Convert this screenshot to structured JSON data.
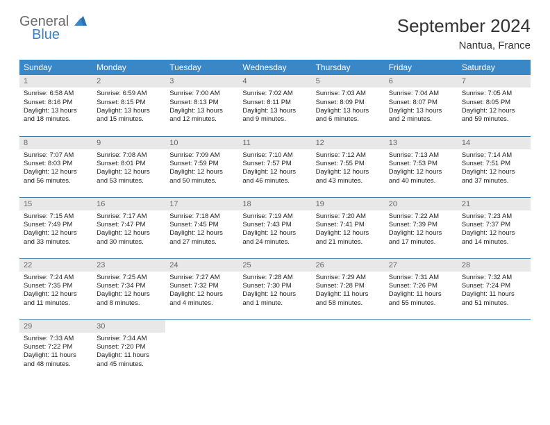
{
  "brand": {
    "part1": "General",
    "part2": "Blue"
  },
  "title": "September 2024",
  "location": "Nantua, France",
  "colors": {
    "header_bg": "#3a87c7",
    "header_text": "#ffffff",
    "daynum_bg": "#e8e8e8",
    "daynum_text": "#666666",
    "row_divider": "#3a7fb0",
    "body_text": "#222222",
    "brand_gray": "#6a6a6a",
    "brand_blue": "#3a7fc4"
  },
  "weekdays": [
    "Sunday",
    "Monday",
    "Tuesday",
    "Wednesday",
    "Thursday",
    "Friday",
    "Saturday"
  ],
  "grid": [
    [
      {
        "n": "1",
        "sr": "Sunrise: 6:58 AM",
        "ss": "Sunset: 8:16 PM",
        "dl": "Daylight: 13 hours and 18 minutes."
      },
      {
        "n": "2",
        "sr": "Sunrise: 6:59 AM",
        "ss": "Sunset: 8:15 PM",
        "dl": "Daylight: 13 hours and 15 minutes."
      },
      {
        "n": "3",
        "sr": "Sunrise: 7:00 AM",
        "ss": "Sunset: 8:13 PM",
        "dl": "Daylight: 13 hours and 12 minutes."
      },
      {
        "n": "4",
        "sr": "Sunrise: 7:02 AM",
        "ss": "Sunset: 8:11 PM",
        "dl": "Daylight: 13 hours and 9 minutes."
      },
      {
        "n": "5",
        "sr": "Sunrise: 7:03 AM",
        "ss": "Sunset: 8:09 PM",
        "dl": "Daylight: 13 hours and 6 minutes."
      },
      {
        "n": "6",
        "sr": "Sunrise: 7:04 AM",
        "ss": "Sunset: 8:07 PM",
        "dl": "Daylight: 13 hours and 2 minutes."
      },
      {
        "n": "7",
        "sr": "Sunrise: 7:05 AM",
        "ss": "Sunset: 8:05 PM",
        "dl": "Daylight: 12 hours and 59 minutes."
      }
    ],
    [
      {
        "n": "8",
        "sr": "Sunrise: 7:07 AM",
        "ss": "Sunset: 8:03 PM",
        "dl": "Daylight: 12 hours and 56 minutes."
      },
      {
        "n": "9",
        "sr": "Sunrise: 7:08 AM",
        "ss": "Sunset: 8:01 PM",
        "dl": "Daylight: 12 hours and 53 minutes."
      },
      {
        "n": "10",
        "sr": "Sunrise: 7:09 AM",
        "ss": "Sunset: 7:59 PM",
        "dl": "Daylight: 12 hours and 50 minutes."
      },
      {
        "n": "11",
        "sr": "Sunrise: 7:10 AM",
        "ss": "Sunset: 7:57 PM",
        "dl": "Daylight: 12 hours and 46 minutes."
      },
      {
        "n": "12",
        "sr": "Sunrise: 7:12 AM",
        "ss": "Sunset: 7:55 PM",
        "dl": "Daylight: 12 hours and 43 minutes."
      },
      {
        "n": "13",
        "sr": "Sunrise: 7:13 AM",
        "ss": "Sunset: 7:53 PM",
        "dl": "Daylight: 12 hours and 40 minutes."
      },
      {
        "n": "14",
        "sr": "Sunrise: 7:14 AM",
        "ss": "Sunset: 7:51 PM",
        "dl": "Daylight: 12 hours and 37 minutes."
      }
    ],
    [
      {
        "n": "15",
        "sr": "Sunrise: 7:15 AM",
        "ss": "Sunset: 7:49 PM",
        "dl": "Daylight: 12 hours and 33 minutes."
      },
      {
        "n": "16",
        "sr": "Sunrise: 7:17 AM",
        "ss": "Sunset: 7:47 PM",
        "dl": "Daylight: 12 hours and 30 minutes."
      },
      {
        "n": "17",
        "sr": "Sunrise: 7:18 AM",
        "ss": "Sunset: 7:45 PM",
        "dl": "Daylight: 12 hours and 27 minutes."
      },
      {
        "n": "18",
        "sr": "Sunrise: 7:19 AM",
        "ss": "Sunset: 7:43 PM",
        "dl": "Daylight: 12 hours and 24 minutes."
      },
      {
        "n": "19",
        "sr": "Sunrise: 7:20 AM",
        "ss": "Sunset: 7:41 PM",
        "dl": "Daylight: 12 hours and 21 minutes."
      },
      {
        "n": "20",
        "sr": "Sunrise: 7:22 AM",
        "ss": "Sunset: 7:39 PM",
        "dl": "Daylight: 12 hours and 17 minutes."
      },
      {
        "n": "21",
        "sr": "Sunrise: 7:23 AM",
        "ss": "Sunset: 7:37 PM",
        "dl": "Daylight: 12 hours and 14 minutes."
      }
    ],
    [
      {
        "n": "22",
        "sr": "Sunrise: 7:24 AM",
        "ss": "Sunset: 7:35 PM",
        "dl": "Daylight: 12 hours and 11 minutes."
      },
      {
        "n": "23",
        "sr": "Sunrise: 7:25 AM",
        "ss": "Sunset: 7:34 PM",
        "dl": "Daylight: 12 hours and 8 minutes."
      },
      {
        "n": "24",
        "sr": "Sunrise: 7:27 AM",
        "ss": "Sunset: 7:32 PM",
        "dl": "Daylight: 12 hours and 4 minutes."
      },
      {
        "n": "25",
        "sr": "Sunrise: 7:28 AM",
        "ss": "Sunset: 7:30 PM",
        "dl": "Daylight: 12 hours and 1 minute."
      },
      {
        "n": "26",
        "sr": "Sunrise: 7:29 AM",
        "ss": "Sunset: 7:28 PM",
        "dl": "Daylight: 11 hours and 58 minutes."
      },
      {
        "n": "27",
        "sr": "Sunrise: 7:31 AM",
        "ss": "Sunset: 7:26 PM",
        "dl": "Daylight: 11 hours and 55 minutes."
      },
      {
        "n": "28",
        "sr": "Sunrise: 7:32 AM",
        "ss": "Sunset: 7:24 PM",
        "dl": "Daylight: 11 hours and 51 minutes."
      }
    ],
    [
      {
        "n": "29",
        "sr": "Sunrise: 7:33 AM",
        "ss": "Sunset: 7:22 PM",
        "dl": "Daylight: 11 hours and 48 minutes."
      },
      {
        "n": "30",
        "sr": "Sunrise: 7:34 AM",
        "ss": "Sunset: 7:20 PM",
        "dl": "Daylight: 11 hours and 45 minutes."
      },
      null,
      null,
      null,
      null,
      null
    ]
  ]
}
